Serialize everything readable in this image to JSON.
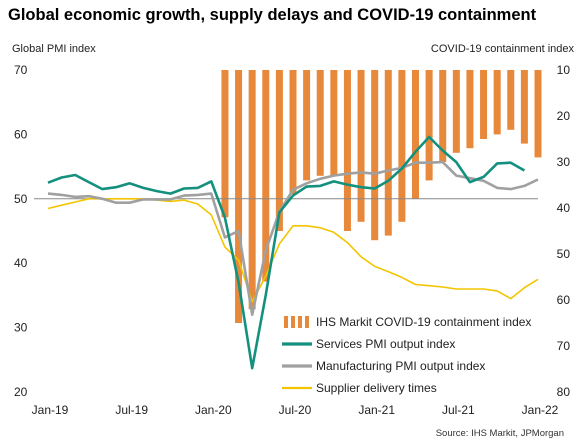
{
  "title": "Global economic growth, supply delays and COVID-19 containment",
  "source": "Source: IHS Markit, JPMorgan",
  "chart_data": {
    "type": "line",
    "title": "Global economic growth, supply delays and COVID-19 containment",
    "left_axis": {
      "label": "Global PMI index",
      "range": [
        20,
        70
      ],
      "ticks": [
        "70",
        "60",
        "50",
        "40",
        "30",
        "20"
      ],
      "reference_line": 50
    },
    "right_axis": {
      "label": "COVID-19 containment index",
      "range": [
        10,
        80
      ],
      "inverted": true,
      "ticks": [
        "10",
        "20",
        "30",
        "40",
        "50",
        "60",
        "70",
        "80"
      ]
    },
    "x_axis": {
      "ticks": [
        "Jan-19",
        "Jul-19",
        "Jan-20",
        "Jul-20",
        "Jan-21",
        "Jul-21",
        "Jan-22"
      ]
    },
    "legend_position": "bottom-right",
    "x": [
      "2019-01",
      "2019-02",
      "2019-03",
      "2019-04",
      "2019-05",
      "2019-06",
      "2019-07",
      "2019-08",
      "2019-09",
      "2019-10",
      "2019-11",
      "2019-12",
      "2020-01",
      "2020-02",
      "2020-03",
      "2020-04",
      "2020-05",
      "2020-06",
      "2020-07",
      "2020-08",
      "2020-09",
      "2020-10",
      "2020-11",
      "2020-12",
      "2021-01",
      "2021-02",
      "2021-03",
      "2021-04",
      "2021-05",
      "2021-06",
      "2021-07",
      "2021-08",
      "2021-09",
      "2021-10",
      "2021-11",
      "2021-12",
      "2022-01"
    ],
    "series": [
      {
        "name": "IHS Markit COVID-19 containment index",
        "type": "bar",
        "axis": "right",
        "color": "#e8883a",
        "values": [
          null,
          null,
          null,
          null,
          null,
          null,
          null,
          null,
          null,
          null,
          null,
          null,
          null,
          10,
          10,
          10,
          10,
          10,
          10,
          10,
          10,
          10,
          10,
          10,
          10,
          10,
          10,
          10,
          10,
          10,
          10,
          10,
          10,
          10,
          10,
          10,
          10
        ],
        "bar_ends": [
          null,
          null,
          null,
          null,
          null,
          null,
          null,
          null,
          null,
          null,
          null,
          null,
          null,
          42,
          65,
          62,
          56,
          45,
          37,
          34,
          33,
          33,
          45,
          43,
          47,
          46,
          43,
          38,
          34,
          30,
          28,
          27,
          25,
          24,
          23,
          26,
          29
        ]
      },
      {
        "name": "Services PMI output index",
        "type": "line",
        "axis": "left",
        "color": "#14907e",
        "values": [
          52.5,
          53.3,
          53.7,
          52.6,
          51.5,
          51.8,
          52.4,
          51.7,
          51.2,
          50.8,
          51.6,
          51.7,
          52.7,
          47.1,
          37.0,
          23.7,
          35.1,
          47.9,
          50.5,
          51.9,
          52.0,
          52.7,
          52.2,
          51.8,
          51.6,
          52.8,
          54.7,
          57.3,
          59.6,
          57.5,
          55.7,
          52.6,
          53.4,
          55.5,
          55.6,
          54.4,
          null
        ]
      },
      {
        "name": "Manufacturing PMI output index",
        "type": "line",
        "axis": "left",
        "color": "#a0a0a0",
        "values": [
          50.8,
          50.6,
          50.3,
          50.4,
          50.0,
          49.4,
          49.4,
          49.9,
          49.9,
          49.9,
          50.5,
          50.6,
          50.8,
          44.0,
          45.0,
          32.0,
          42.0,
          48.0,
          51.4,
          52.4,
          53.1,
          53.6,
          53.9,
          54.1,
          53.9,
          54.4,
          54.8,
          55.6,
          55.6,
          55.7,
          53.6,
          53.2,
          52.8,
          51.7,
          51.5,
          52.0,
          53.0
        ]
      },
      {
        "name": "Supplier delivery times",
        "type": "line",
        "axis": "left",
        "color": "#f2c500",
        "values": [
          48.5,
          49.0,
          49.5,
          50.0,
          50.0,
          50.0,
          50.0,
          50.0,
          49.8,
          49.6,
          49.8,
          49.2,
          47.5,
          42.5,
          40.5,
          34.0,
          38.0,
          43.0,
          45.8,
          45.8,
          45.5,
          44.8,
          43.2,
          41.0,
          39.5,
          38.7,
          37.8,
          36.7,
          36.5,
          36.3,
          36.0,
          36.0,
          36.0,
          35.7,
          34.5,
          36.2,
          37.5
        ]
      }
    ]
  }
}
